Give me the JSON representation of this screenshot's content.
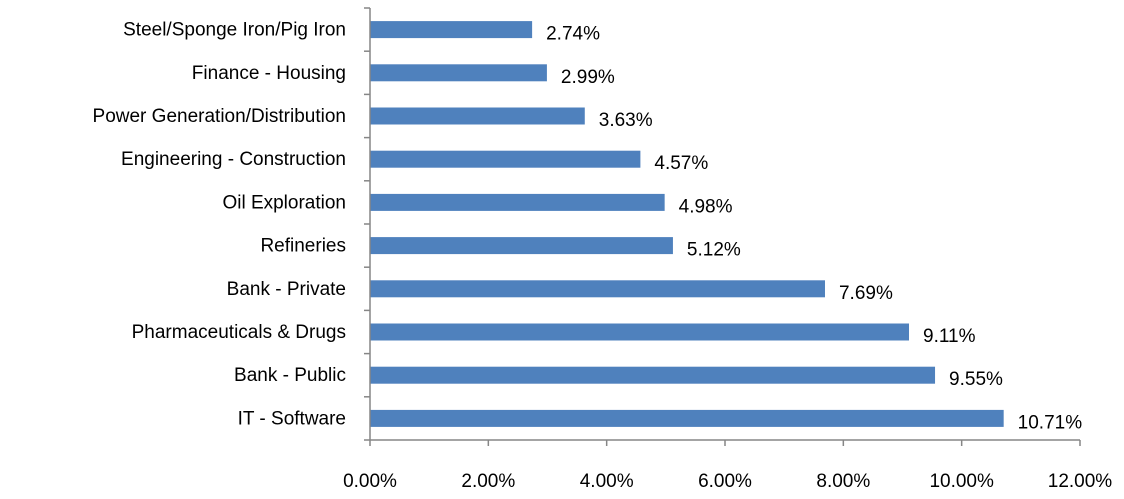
{
  "chart_data": {
    "type": "barh",
    "categories": [
      "Steel/Sponge Iron/Pig Iron",
      "Finance - Housing",
      "Power Generation/Distribution",
      "Engineering - Construction",
      "Oil Exploration",
      "Refineries",
      "Bank - Private",
      "Pharmaceuticals & Drugs",
      "Bank - Public",
      "IT - Software"
    ],
    "values": [
      2.74,
      2.99,
      3.63,
      4.57,
      4.98,
      5.12,
      7.69,
      9.11,
      9.55,
      10.71
    ],
    "value_labels": [
      "2.74%",
      "2.99%",
      "3.63%",
      "4.57%",
      "4.98%",
      "5.12%",
      "7.69%",
      "9.11%",
      "9.55%",
      "10.71%"
    ],
    "color": "#4f81bd",
    "xlim": [
      0,
      12
    ],
    "xticks": [
      {
        "value": 0,
        "label": "0.00%"
      },
      {
        "value": 2,
        "label": "2.00%"
      },
      {
        "value": 4,
        "label": "4.00%"
      },
      {
        "value": 6,
        "label": "6.00%"
      },
      {
        "value": 8,
        "label": "8.00%"
      },
      {
        "value": 10,
        "label": "10.00%"
      },
      {
        "value": 12,
        "label": "12.00%"
      }
    ],
    "grid": false
  }
}
